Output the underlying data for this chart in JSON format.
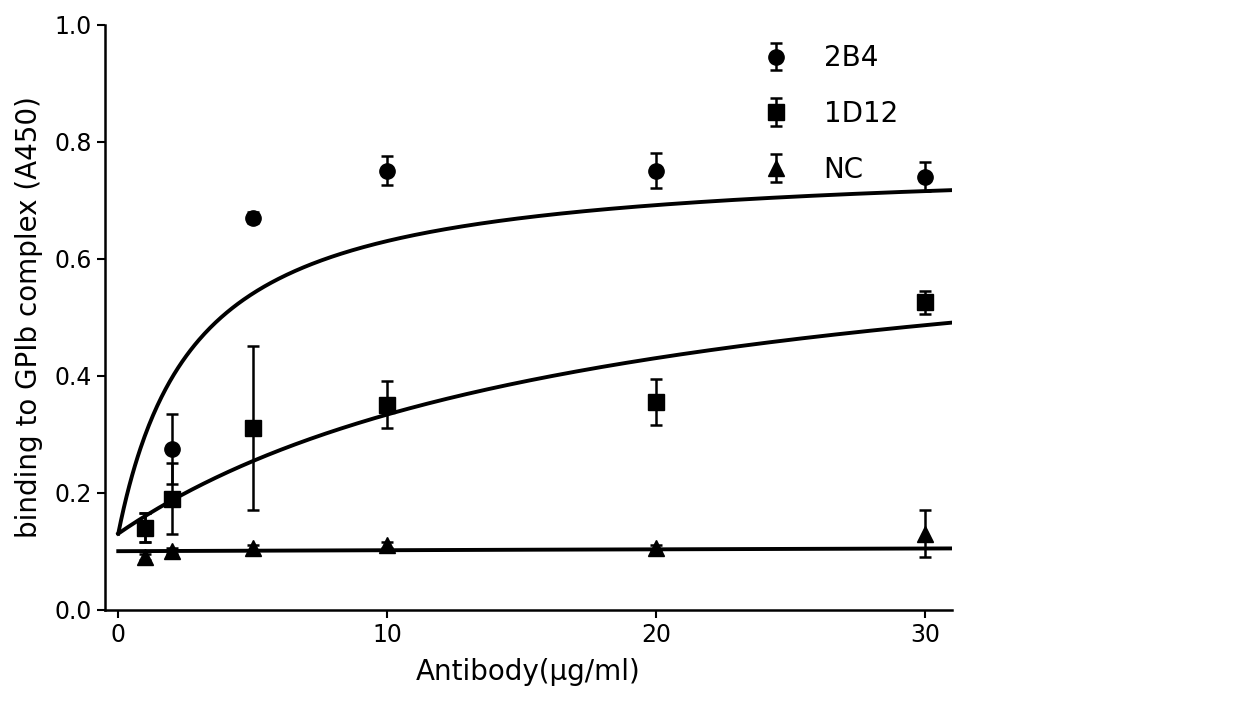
{
  "title": "",
  "xlabel": "Antibody(μg/ml)",
  "ylabel": "binding to GPIb complex (A450)",
  "xlim": [
    0,
    31
  ],
  "ylim": [
    0.0,
    1.0
  ],
  "yticks": [
    0.0,
    0.2,
    0.4,
    0.6,
    0.8,
    1.0
  ],
  "xticks": [
    0,
    10,
    20,
    30
  ],
  "background_color": "#ffffff",
  "series": [
    {
      "label": "2B4",
      "x": [
        1,
        2,
        5,
        10,
        20,
        30
      ],
      "y": [
        0.14,
        0.275,
        0.67,
        0.75,
        0.75,
        0.74
      ],
      "yerr": [
        0.025,
        0.06,
        0.01,
        0.025,
        0.03,
        0.025
      ],
      "marker": "o",
      "color": "#000000",
      "baseline": 0.13,
      "Bmax": 0.77,
      "Kd": 2.8
    },
    {
      "label": "1D12",
      "x": [
        1,
        2,
        5,
        10,
        20,
        30
      ],
      "y": [
        0.14,
        0.19,
        0.31,
        0.35,
        0.355,
        0.525
      ],
      "yerr": [
        0.025,
        0.06,
        0.14,
        0.04,
        0.04,
        0.02
      ],
      "marker": "s",
      "color": "#000000",
      "baseline": 0.13,
      "Bmax": 0.7,
      "Kd": 18.0
    },
    {
      "label": "NC",
      "x": [
        1,
        2,
        5,
        10,
        20,
        30
      ],
      "y": [
        0.09,
        0.1,
        0.105,
        0.11,
        0.105,
        0.13
      ],
      "yerr": [
        0.005,
        0.005,
        0.005,
        0.005,
        0.005,
        0.04
      ],
      "marker": "^",
      "color": "#000000",
      "baseline": 0.1,
      "Bmax": 0.135,
      "Kd": 200.0
    }
  ],
  "legend_fontsize": 20,
  "axis_fontsize": 20,
  "tick_fontsize": 17,
  "line_width": 2.8,
  "marker_size": 11,
  "capsize": 4
}
